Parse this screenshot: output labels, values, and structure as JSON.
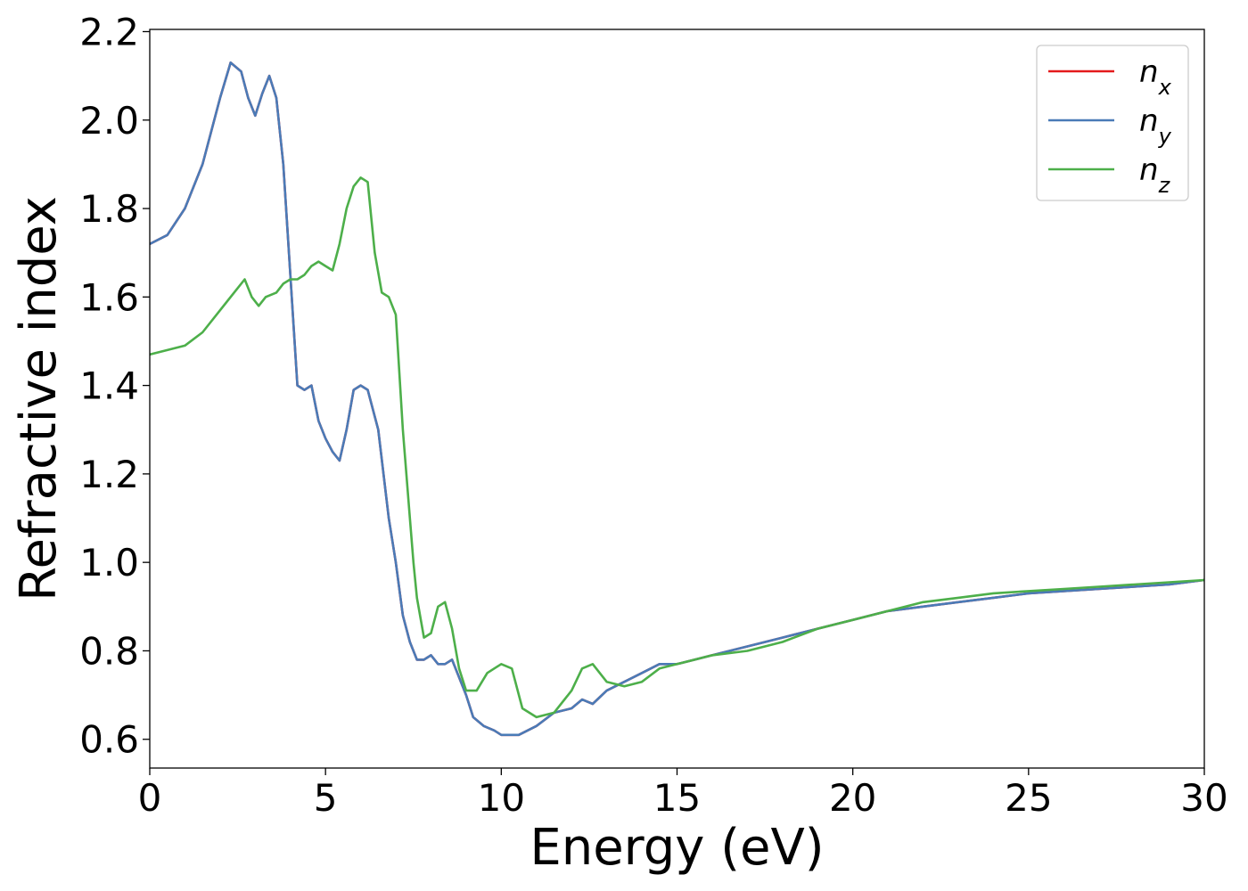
{
  "chart_data": {
    "type": "line",
    "title": "",
    "xlabel": "Energy (eV)",
    "ylabel": "Refractive index",
    "xlim": [
      0,
      30
    ],
    "ylim": [
      0.535,
      2.205
    ],
    "xticks": [
      0,
      5,
      10,
      15,
      20,
      25,
      30
    ],
    "yticks": [
      0.6,
      0.8,
      1.0,
      1.2,
      1.4,
      1.6,
      1.8,
      2.0,
      2.2
    ],
    "xtick_labels": [
      "0",
      "5",
      "10",
      "15",
      "20",
      "25",
      "30"
    ],
    "ytick_labels": [
      "0.6",
      "0.8",
      "1.0",
      "1.2",
      "1.4",
      "1.6",
      "1.8",
      "2.0",
      "2.2"
    ],
    "grid": false,
    "legend_position": "top-right",
    "series": [
      {
        "name": "n_x",
        "legend_base": "n",
        "legend_sub": "x",
        "color": "#e41a1c",
        "x": [
          0,
          0.5,
          1.0,
          1.5,
          2.0,
          2.3,
          2.6,
          2.8,
          3.0,
          3.2,
          3.4,
          3.6,
          3.8,
          4.0,
          4.2,
          4.4,
          4.6,
          4.8,
          5.0,
          5.2,
          5.4,
          5.6,
          5.8,
          6.0,
          6.2,
          6.5,
          6.8,
          7.0,
          7.2,
          7.4,
          7.6,
          7.8,
          8.0,
          8.2,
          8.4,
          8.6,
          8.8,
          9.0,
          9.2,
          9.5,
          9.8,
          10.0,
          10.5,
          11.0,
          11.5,
          12.0,
          12.3,
          12.6,
          13.0,
          13.5,
          14.0,
          14.5,
          15.0,
          15.5,
          16.0,
          17.0,
          18.0,
          19.0,
          20.0,
          21.0,
          22.0,
          23.0,
          24.0,
          25.0,
          26.0,
          27.0,
          28.0,
          29.0,
          30.0
        ],
        "y": [
          1.72,
          1.74,
          1.8,
          1.9,
          2.05,
          2.13,
          2.11,
          2.05,
          2.01,
          2.06,
          2.1,
          2.05,
          1.9,
          1.65,
          1.4,
          1.39,
          1.4,
          1.32,
          1.28,
          1.25,
          1.23,
          1.3,
          1.39,
          1.4,
          1.39,
          1.3,
          1.1,
          1.0,
          0.88,
          0.82,
          0.78,
          0.78,
          0.79,
          0.77,
          0.77,
          0.78,
          0.74,
          0.7,
          0.65,
          0.63,
          0.62,
          0.61,
          0.61,
          0.63,
          0.66,
          0.67,
          0.69,
          0.68,
          0.71,
          0.73,
          0.75,
          0.77,
          0.77,
          0.78,
          0.79,
          0.81,
          0.83,
          0.85,
          0.87,
          0.89,
          0.9,
          0.91,
          0.92,
          0.93,
          0.935,
          0.94,
          0.945,
          0.95,
          0.96
        ]
      },
      {
        "name": "n_y",
        "legend_base": "n",
        "legend_sub": "y",
        "color": "#4a7bb7",
        "x": [
          0,
          0.5,
          1.0,
          1.5,
          2.0,
          2.3,
          2.6,
          2.8,
          3.0,
          3.2,
          3.4,
          3.6,
          3.8,
          4.0,
          4.2,
          4.4,
          4.6,
          4.8,
          5.0,
          5.2,
          5.4,
          5.6,
          5.8,
          6.0,
          6.2,
          6.5,
          6.8,
          7.0,
          7.2,
          7.4,
          7.6,
          7.8,
          8.0,
          8.2,
          8.4,
          8.6,
          8.8,
          9.0,
          9.2,
          9.5,
          9.8,
          10.0,
          10.5,
          11.0,
          11.5,
          12.0,
          12.3,
          12.6,
          13.0,
          13.5,
          14.0,
          14.5,
          15.0,
          15.5,
          16.0,
          17.0,
          18.0,
          19.0,
          20.0,
          21.0,
          22.0,
          23.0,
          24.0,
          25.0,
          26.0,
          27.0,
          28.0,
          29.0,
          30.0
        ],
        "y": [
          1.72,
          1.74,
          1.8,
          1.9,
          2.05,
          2.13,
          2.11,
          2.05,
          2.01,
          2.06,
          2.1,
          2.05,
          1.9,
          1.65,
          1.4,
          1.39,
          1.4,
          1.32,
          1.28,
          1.25,
          1.23,
          1.3,
          1.39,
          1.4,
          1.39,
          1.3,
          1.1,
          1.0,
          0.88,
          0.82,
          0.78,
          0.78,
          0.79,
          0.77,
          0.77,
          0.78,
          0.74,
          0.7,
          0.65,
          0.63,
          0.62,
          0.61,
          0.61,
          0.63,
          0.66,
          0.67,
          0.69,
          0.68,
          0.71,
          0.73,
          0.75,
          0.77,
          0.77,
          0.78,
          0.79,
          0.81,
          0.83,
          0.85,
          0.87,
          0.89,
          0.9,
          0.91,
          0.92,
          0.93,
          0.935,
          0.94,
          0.945,
          0.95,
          0.96
        ]
      },
      {
        "name": "n_z",
        "legend_base": "n",
        "legend_sub": "z",
        "color": "#4daf4a",
        "x": [
          0,
          0.5,
          1.0,
          1.5,
          2.0,
          2.4,
          2.7,
          2.9,
          3.1,
          3.3,
          3.6,
          3.8,
          4.0,
          4.2,
          4.4,
          4.6,
          4.8,
          5.0,
          5.2,
          5.4,
          5.6,
          5.8,
          6.0,
          6.2,
          6.4,
          6.6,
          6.8,
          7.0,
          7.2,
          7.4,
          7.5,
          7.6,
          7.8,
          8.0,
          8.2,
          8.4,
          8.6,
          8.8,
          9.0,
          9.3,
          9.6,
          9.8,
          10.0,
          10.3,
          10.6,
          11.0,
          11.5,
          12.0,
          12.3,
          12.6,
          13.0,
          13.5,
          14.0,
          14.5,
          15.0,
          15.5,
          16.0,
          17.0,
          18.0,
          19.0,
          20.0,
          21.0,
          22.0,
          23.0,
          24.0,
          25.0,
          26.0,
          27.0,
          28.0,
          29.0,
          30.0
        ],
        "y": [
          1.47,
          1.48,
          1.49,
          1.52,
          1.57,
          1.61,
          1.64,
          1.6,
          1.58,
          1.6,
          1.61,
          1.63,
          1.64,
          1.64,
          1.65,
          1.67,
          1.68,
          1.67,
          1.66,
          1.72,
          1.8,
          1.85,
          1.87,
          1.86,
          1.7,
          1.61,
          1.6,
          1.56,
          1.3,
          1.1,
          1.0,
          0.92,
          0.83,
          0.84,
          0.9,
          0.91,
          0.85,
          0.76,
          0.71,
          0.71,
          0.75,
          0.76,
          0.77,
          0.76,
          0.67,
          0.65,
          0.66,
          0.71,
          0.76,
          0.77,
          0.73,
          0.72,
          0.73,
          0.76,
          0.77,
          0.78,
          0.79,
          0.8,
          0.82,
          0.85,
          0.87,
          0.89,
          0.91,
          0.92,
          0.93,
          0.935,
          0.94,
          0.945,
          0.95,
          0.955,
          0.96
        ]
      }
    ]
  }
}
